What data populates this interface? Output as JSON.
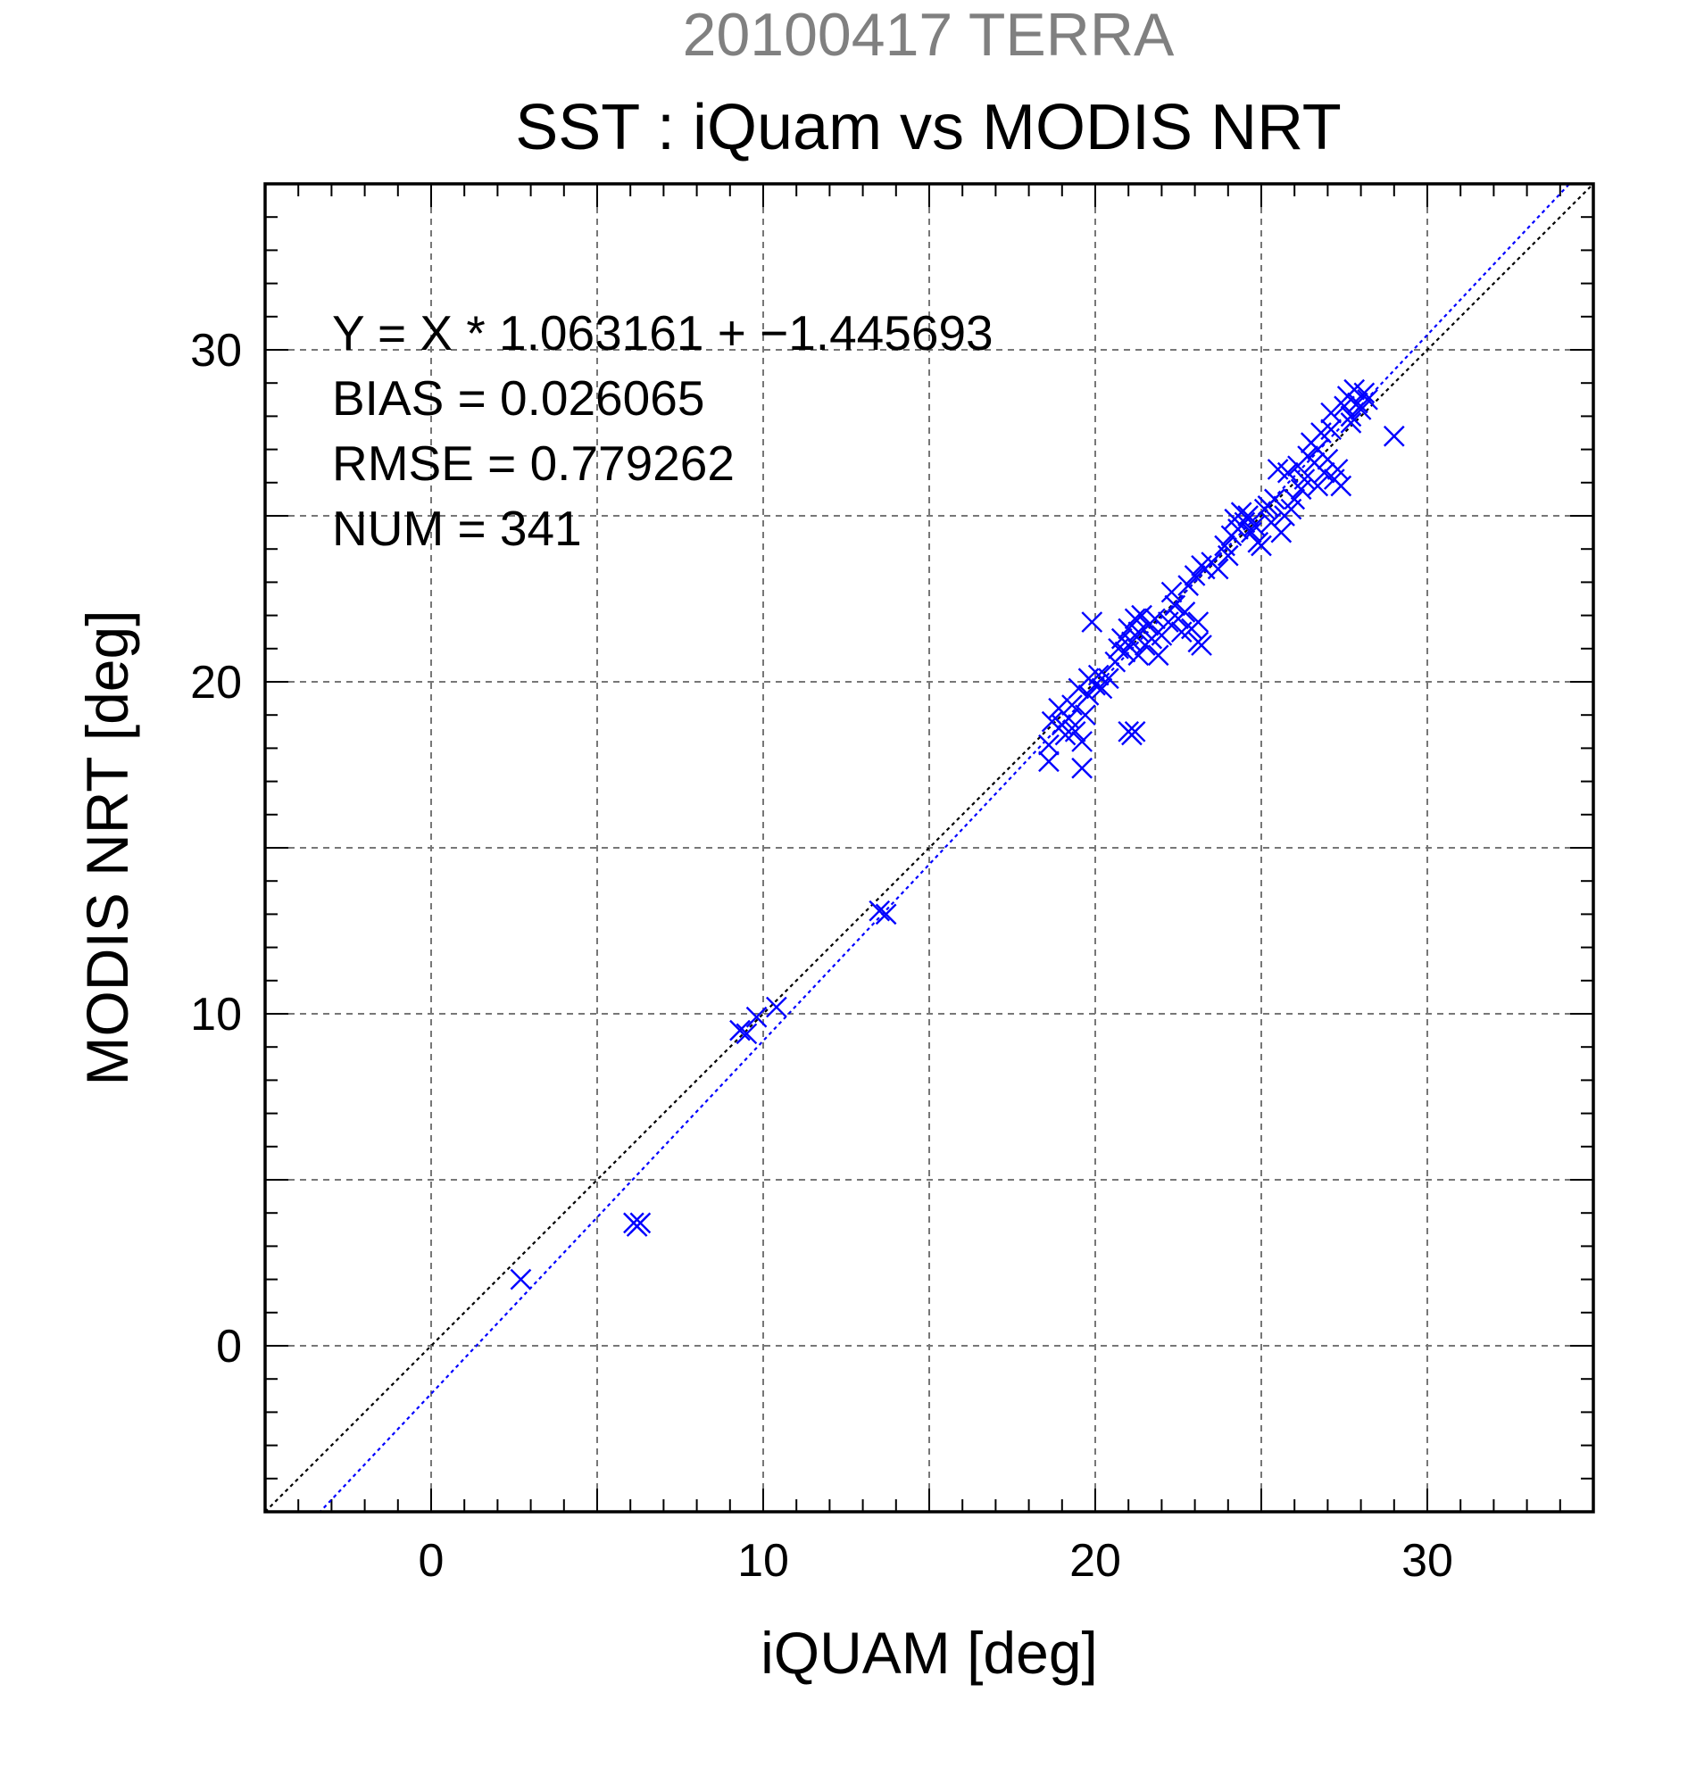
{
  "chart_data": {
    "type": "scatter",
    "supertitle": "20100417 TERRA",
    "title": "SST : iQuam vs MODIS NRT",
    "xlabel": "iQUAM [deg]",
    "ylabel": "MODIS NRT [deg]",
    "xlim": [
      -5,
      35
    ],
    "ylim": [
      -5,
      35
    ],
    "xticks": [
      0,
      10,
      20,
      30
    ],
    "yticks": [
      0,
      10,
      20,
      30
    ],
    "grid_step": 5,
    "minor_tick_step": 1,
    "grid": true,
    "marker": "x",
    "colors": {
      "points": "#0000ff",
      "fit_line": "#0000ff",
      "identity_line": "#000000",
      "grid": "#777777",
      "supertitle": "#808080"
    },
    "stats": [
      "Y = X * 1.063161 + −1.445693",
      "BIAS = 0.026065",
      "RMSE = 0.779262",
      "NUM = 341"
    ],
    "lines": [
      {
        "type": "identity",
        "slope": 1,
        "intercept": 0
      },
      {
        "type": "regression",
        "slope": 1.063161,
        "intercept": -1.445693
      }
    ],
    "points": [
      [
        2.7,
        2.0
      ],
      [
        6.1,
        3.7
      ],
      [
        6.3,
        3.7
      ],
      [
        6.2,
        3.6
      ],
      [
        9.3,
        9.5
      ],
      [
        9.5,
        9.4
      ],
      [
        9.8,
        9.9
      ],
      [
        10.4,
        10.2
      ],
      [
        13.5,
        13.1
      ],
      [
        13.7,
        13.0
      ],
      [
        18.6,
        17.6
      ],
      [
        18.6,
        18.1
      ],
      [
        18.7,
        18.8
      ],
      [
        18.9,
        19.2
      ],
      [
        19.0,
        18.7
      ],
      [
        19.1,
        18.4
      ],
      [
        19.2,
        18.9
      ],
      [
        19.3,
        19.3
      ],
      [
        19.4,
        18.5
      ],
      [
        19.5,
        19.8
      ],
      [
        19.6,
        17.4
      ],
      [
        19.6,
        18.2
      ],
      [
        19.7,
        19.0
      ],
      [
        19.8,
        20.1
      ],
      [
        19.8,
        19.6
      ],
      [
        19.9,
        21.8
      ],
      [
        20.0,
        19.9
      ],
      [
        20.1,
        20.2
      ],
      [
        20.2,
        19.8
      ],
      [
        20.4,
        20.1
      ],
      [
        20.6,
        20.6
      ],
      [
        20.7,
        21.0
      ],
      [
        20.8,
        21.3
      ],
      [
        20.9,
        20.9
      ],
      [
        21.0,
        21.6
      ],
      [
        21.0,
        18.5
      ],
      [
        21.1,
        18.4
      ],
      [
        21.2,
        18.5
      ],
      [
        21.1,
        21.2
      ],
      [
        21.2,
        21.9
      ],
      [
        21.3,
        20.8
      ],
      [
        21.3,
        21.5
      ],
      [
        21.4,
        22.0
      ],
      [
        21.5,
        21.1
      ],
      [
        21.6,
        21.7
      ],
      [
        21.7,
        21.3
      ],
      [
        21.8,
        21.9
      ],
      [
        21.9,
        20.8
      ],
      [
        22.0,
        21.4
      ],
      [
        22.2,
        21.8
      ],
      [
        22.3,
        22.7
      ],
      [
        22.4,
        22.3
      ],
      [
        22.5,
        21.9
      ],
      [
        22.6,
        21.5
      ],
      [
        22.7,
        22.1
      ],
      [
        22.8,
        22.9
      ],
      [
        22.9,
        21.6
      ],
      [
        23.0,
        23.2
      ],
      [
        23.1,
        21.2
      ],
      [
        23.2,
        21.1
      ],
      [
        23.1,
        21.8
      ],
      [
        23.2,
        23.5
      ],
      [
        23.3,
        23.4
      ],
      [
        23.5,
        23.6
      ],
      [
        23.7,
        23.4
      ],
      [
        23.9,
        24.1
      ],
      [
        24.0,
        23.8
      ],
      [
        24.1,
        24.4
      ],
      [
        24.2,
        24.9
      ],
      [
        24.3,
        24.6
      ],
      [
        24.4,
        25.1
      ],
      [
        24.5,
        24.8
      ],
      [
        24.6,
        25.0
      ],
      [
        24.7,
        24.5
      ],
      [
        24.8,
        24.7
      ],
      [
        24.9,
        24.2
      ],
      [
        25.0,
        24.1
      ],
      [
        25.1,
        25.2
      ],
      [
        25.2,
        25.3
      ],
      [
        25.3,
        24.8
      ],
      [
        25.4,
        25.5
      ],
      [
        25.5,
        26.4
      ],
      [
        25.6,
        24.5
      ],
      [
        25.7,
        25.0
      ],
      [
        25.8,
        26.3
      ],
      [
        25.9,
        25.2
      ],
      [
        26.0,
        25.5
      ],
      [
        26.1,
        26.5
      ],
      [
        26.2,
        25.8
      ],
      [
        26.3,
        26.1
      ],
      [
        26.4,
        26.8
      ],
      [
        26.5,
        27.2
      ],
      [
        26.6,
        26.6
      ],
      [
        26.7,
        27.0
      ],
      [
        26.7,
        25.9
      ],
      [
        26.8,
        27.5
      ],
      [
        26.9,
        26.3
      ],
      [
        27.0,
        26.7
      ],
      [
        27.1,
        27.6
      ],
      [
        27.1,
        28.1
      ],
      [
        27.2,
        26.1
      ],
      [
        27.3,
        26.4
      ],
      [
        27.4,
        25.9
      ],
      [
        27.5,
        28.3
      ],
      [
        27.6,
        28.6
      ],
      [
        27.7,
        28.0
      ],
      [
        27.7,
        27.8
      ],
      [
        27.8,
        28.8
      ],
      [
        27.9,
        28.4
      ],
      [
        28.0,
        28.2
      ],
      [
        28.1,
        28.7
      ],
      [
        28.2,
        28.5
      ],
      [
        29.0,
        27.4
      ]
    ]
  }
}
